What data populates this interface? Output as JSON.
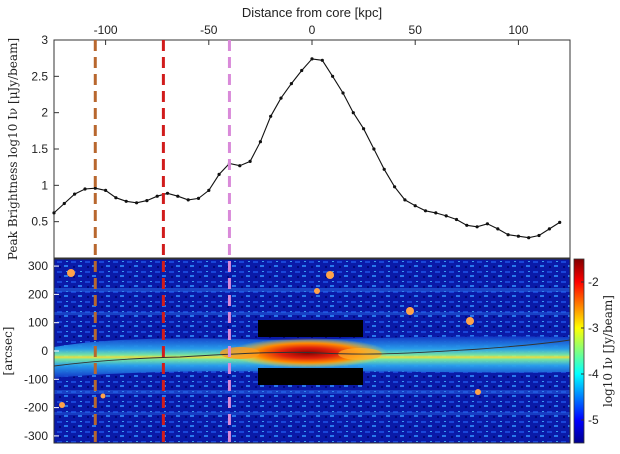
{
  "chart_data": [
    {
      "type": "line",
      "title": "",
      "xlabel_top": "Distance from core [kpc]",
      "ylabel": "Peak Brightness log10 Iν [μJy/beam]",
      "xlim": [
        -125,
        125
      ],
      "ylim": [
        0,
        3
      ],
      "x_ticks": [
        -100,
        -50,
        0,
        50,
        100
      ],
      "x_tick_labels": [
        "-100",
        "-50",
        "0",
        "50",
        "100"
      ],
      "y_ticks": [
        0.5,
        1,
        1.5,
        2,
        2.5,
        3
      ],
      "y_tick_labels": [
        "0.5",
        "1",
        "1.5",
        "2",
        "2.5",
        "3"
      ],
      "grid": false,
      "series": [
        {
          "color": "#111111",
          "points": [
            [
              -125,
              0.62
            ],
            [
              -120,
              0.75
            ],
            [
              -115,
              0.88
            ],
            [
              -110,
              0.95
            ],
            [
              -105,
              0.96
            ],
            [
              -100,
              0.93
            ],
            [
              -95,
              0.83
            ],
            [
              -90,
              0.78
            ],
            [
              -85,
              0.76
            ],
            [
              -80,
              0.79
            ],
            [
              -75,
              0.85
            ],
            [
              -70,
              0.89
            ],
            [
              -65,
              0.85
            ],
            [
              -60,
              0.8
            ],
            [
              -55,
              0.82
            ],
            [
              -50,
              0.93
            ],
            [
              -45,
              1.15
            ],
            [
              -40,
              1.3
            ],
            [
              -35,
              1.27
            ],
            [
              -30,
              1.33
            ],
            [
              -25,
              1.6
            ],
            [
              -20,
              1.95
            ],
            [
              -15,
              2.2
            ],
            [
              -10,
              2.4
            ],
            [
              -5,
              2.58
            ],
            [
              0,
              2.74
            ],
            [
              5,
              2.72
            ],
            [
              10,
              2.5
            ],
            [
              15,
              2.27
            ],
            [
              20,
              2.0
            ],
            [
              25,
              1.78
            ],
            [
              30,
              1.5
            ],
            [
              35,
              1.22
            ],
            [
              40,
              0.98
            ],
            [
              45,
              0.8
            ],
            [
              50,
              0.72
            ],
            [
              55,
              0.65
            ],
            [
              60,
              0.62
            ],
            [
              65,
              0.58
            ],
            [
              70,
              0.53
            ],
            [
              75,
              0.45
            ],
            [
              80,
              0.43
            ],
            [
              85,
              0.47
            ],
            [
              90,
              0.4
            ],
            [
              95,
              0.32
            ],
            [
              100,
              0.3
            ],
            [
              105,
              0.28
            ],
            [
              110,
              0.31
            ],
            [
              115,
              0.4
            ],
            [
              120,
              0.49
            ]
          ]
        }
      ]
    },
    {
      "type": "heatmap",
      "ylabel": "[arcsec]",
      "ylim": [
        -325,
        325
      ],
      "y_ticks": [
        300,
        200,
        100,
        0,
        -100,
        -200,
        -300
      ],
      "y_tick_labels": [
        "300",
        "200",
        "100",
        "0",
        "-100",
        "-200",
        "-300"
      ],
      "colorbar_label": "log10 Iν [Jy/beam]",
      "colorbar_ticks": [
        -2,
        -3,
        -4,
        -5
      ],
      "colorbar_tick_labels": [
        "-2",
        "-3",
        "-4",
        "-5"
      ],
      "colormap": "jet"
    }
  ],
  "markers": [
    {
      "x_kpc": -105,
      "color": "#b8672e"
    },
    {
      "x_kpc": -72,
      "color": "#d11c1c"
    },
    {
      "x_kpc": -40,
      "color": "#d98ad9"
    }
  ]
}
